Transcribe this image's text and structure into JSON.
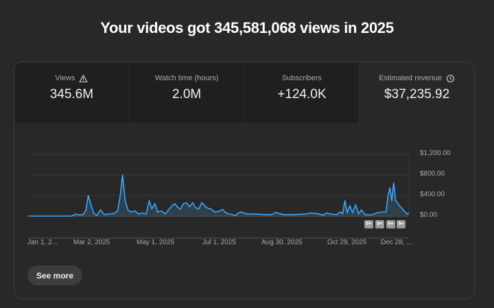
{
  "header": {
    "title": "Your videos got 345,581,068 views in 2025"
  },
  "metrics": [
    {
      "label": "Views",
      "value": "345.6M",
      "icon": "warning-icon"
    },
    {
      "label": "Watch time (hours)",
      "value": "2.0M"
    },
    {
      "label": "Subscribers",
      "value": "+124.0K"
    },
    {
      "label": "Estimated revenue",
      "value": "$37,235.92",
      "icon": "clock-icon",
      "active": true
    }
  ],
  "colors": {
    "line": "#3ea6ff",
    "fill": "#2f4a5a",
    "grid": "#3a3a3a"
  },
  "chart_data": {
    "type": "area",
    "title": "Estimated revenue",
    "y_tick_labels": [
      "$1,200.00",
      "$800.00",
      "$400.00",
      "$0.00"
    ],
    "ylim": [
      0,
      1200
    ],
    "x_tick_labels": [
      "Jan 1, 2...",
      "Mar 2, 2025",
      "May 1, 2025",
      "Jul 1, 2025",
      "Aug 30, 2025",
      "Oct 29, 2025",
      "Dec 28, ..."
    ],
    "annotation_badges": [
      "9+",
      "9+",
      "9+",
      "9+"
    ],
    "grid": true,
    "points": [
      [
        0,
        0
      ],
      [
        0.115,
        0
      ],
      [
        0.125,
        40
      ],
      [
        0.135,
        20
      ],
      [
        0.145,
        30
      ],
      [
        0.152,
        120
      ],
      [
        0.158,
        400
      ],
      [
        0.165,
        220
      ],
      [
        0.172,
        60
      ],
      [
        0.18,
        10
      ],
      [
        0.19,
        120
      ],
      [
        0.2,
        30
      ],
      [
        0.21,
        40
      ],
      [
        0.225,
        50
      ],
      [
        0.235,
        100
      ],
      [
        0.242,
        400
      ],
      [
        0.248,
        800
      ],
      [
        0.255,
        300
      ],
      [
        0.262,
        120
      ],
      [
        0.27,
        80
      ],
      [
        0.28,
        100
      ],
      [
        0.29,
        40
      ],
      [
        0.3,
        60
      ],
      [
        0.31,
        40
      ],
      [
        0.318,
        300
      ],
      [
        0.325,
        140
      ],
      [
        0.333,
        240
      ],
      [
        0.34,
        80
      ],
      [
        0.35,
        100
      ],
      [
        0.36,
        40
      ],
      [
        0.37,
        130
      ],
      [
        0.378,
        200
      ],
      [
        0.385,
        240
      ],
      [
        0.392,
        180
      ],
      [
        0.4,
        130
      ],
      [
        0.408,
        240
      ],
      [
        0.416,
        260
      ],
      [
        0.424,
        180
      ],
      [
        0.432,
        260
      ],
      [
        0.44,
        160
      ],
      [
        0.448,
        140
      ],
      [
        0.456,
        260
      ],
      [
        0.464,
        200
      ],
      [
        0.472,
        150
      ],
      [
        0.48,
        140
      ],
      [
        0.49,
        80
      ],
      [
        0.5,
        90
      ],
      [
        0.51,
        130
      ],
      [
        0.52,
        60
      ],
      [
        0.53,
        40
      ],
      [
        0.54,
        20
      ],
      [
        0.545,
        10
      ],
      [
        0.552,
        60
      ],
      [
        0.56,
        80
      ],
      [
        0.57,
        50
      ],
      [
        0.58,
        40
      ],
      [
        0.6,
        40
      ],
      [
        0.62,
        30
      ],
      [
        0.64,
        30
      ],
      [
        0.65,
        70
      ],
      [
        0.66,
        50
      ],
      [
        0.67,
        30
      ],
      [
        0.7,
        30
      ],
      [
        0.73,
        40
      ],
      [
        0.74,
        60
      ],
      [
        0.76,
        50
      ],
      [
        0.775,
        20
      ],
      [
        0.785,
        60
      ],
      [
        0.795,
        40
      ],
      [
        0.81,
        30
      ],
      [
        0.82,
        80
      ],
      [
        0.826,
        40
      ],
      [
        0.832,
        300
      ],
      [
        0.838,
        60
      ],
      [
        0.845,
        200
      ],
      [
        0.852,
        60
      ],
      [
        0.86,
        220
      ],
      [
        0.868,
        40
      ],
      [
        0.875,
        120
      ],
      [
        0.885,
        30
      ],
      [
        0.9,
        20
      ],
      [
        0.915,
        60
      ],
      [
        0.93,
        80
      ],
      [
        0.94,
        80
      ],
      [
        0.945,
        400
      ],
      [
        0.95,
        550
      ],
      [
        0.955,
        300
      ],
      [
        0.96,
        650
      ],
      [
        0.965,
        300
      ],
      [
        0.97,
        260
      ],
      [
        0.975,
        200
      ],
      [
        0.98,
        160
      ],
      [
        0.985,
        120
      ],
      [
        0.99,
        80
      ],
      [
        0.995,
        40
      ],
      [
        1.0,
        60
      ]
    ]
  },
  "actions": {
    "see_more": "See more"
  }
}
